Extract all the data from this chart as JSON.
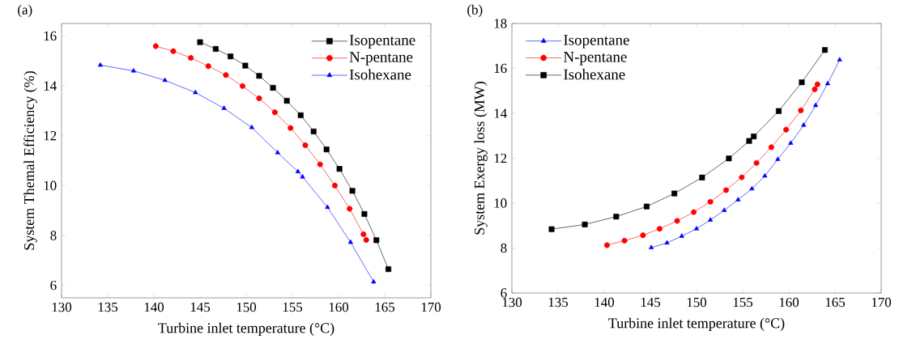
{
  "chart_data": [
    {
      "type": "line",
      "title": "(a)",
      "xlabel": "Turbine inlet temperature (°C)",
      "ylabel": "System Themal Efficiency (%)",
      "xlim": [
        130,
        170
      ],
      "ylim": [
        5.5,
        16.5
      ],
      "xticks": [
        130,
        135,
        140,
        145,
        150,
        155,
        160,
        165,
        170
      ],
      "yticks": [
        6,
        8,
        10,
        12,
        14,
        16
      ],
      "legend": "top right",
      "grid": false,
      "series": [
        {
          "name": "Isopentane",
          "color": "#000000",
          "marker": "square",
          "x": [
            145.0,
            146.7,
            148.3,
            149.9,
            151.4,
            152.9,
            154.4,
            155.9,
            157.3,
            158.7,
            160.1,
            161.5,
            162.8,
            164.1,
            165.4
          ],
          "values": [
            15.75,
            15.48,
            15.18,
            14.81,
            14.4,
            13.92,
            13.4,
            12.82,
            12.17,
            11.45,
            10.67,
            9.79,
            8.86,
            7.81,
            6.65
          ]
        },
        {
          "name": "N-pentane",
          "color": "#ff0000",
          "marker": "circle",
          "x": [
            140.2,
            142.1,
            144.0,
            145.9,
            147.8,
            149.6,
            151.4,
            153.1,
            154.8,
            156.4,
            158.0,
            159.6,
            161.2,
            162.7,
            163.0
          ],
          "values": [
            15.59,
            15.39,
            15.12,
            14.79,
            14.43,
            13.99,
            13.5,
            12.94,
            12.31,
            11.62,
            10.85,
            10.0,
            9.07,
            8.05,
            7.82
          ]
        },
        {
          "name": "Isohexane",
          "color": "#0000ff",
          "marker": "triangle",
          "x": [
            134.2,
            137.8,
            141.2,
            144.5,
            147.6,
            150.6,
            153.4,
            155.6,
            156.1,
            158.8,
            161.3,
            163.8
          ],
          "values": [
            14.83,
            14.6,
            14.22,
            13.73,
            13.1,
            12.33,
            11.32,
            10.56,
            10.35,
            9.13,
            7.73,
            6.14
          ]
        }
      ]
    },
    {
      "type": "line",
      "title": "(b)",
      "xlabel": "Turbine inlet temperature (°C)",
      "ylabel": "System Exergy loss (MW)",
      "xlim": [
        130,
        170
      ],
      "ylim": [
        6,
        18
      ],
      "xticks": [
        130,
        135,
        140,
        145,
        150,
        155,
        160,
        165,
        170
      ],
      "yticks": [
        6,
        8,
        10,
        12,
        14,
        16,
        18
      ],
      "legend": "top left",
      "grid": false,
      "series": [
        {
          "name": "Isopentane",
          "color": "#0000ff",
          "marker": "triangle",
          "x": [
            145.1,
            146.8,
            148.4,
            150.0,
            151.5,
            153.0,
            154.5,
            156.0,
            157.4,
            158.8,
            160.2,
            161.6,
            162.9,
            164.2,
            165.5
          ],
          "values": [
            8.02,
            8.23,
            8.53,
            8.86,
            9.25,
            9.68,
            10.15,
            10.64,
            11.21,
            11.95,
            12.67,
            13.47,
            14.35,
            15.32,
            16.38
          ]
        },
        {
          "name": "N-pentane",
          "color": "#ff0000",
          "marker": "circle",
          "x": [
            140.3,
            142.2,
            144.2,
            146.0,
            147.9,
            149.7,
            151.5,
            153.2,
            154.9,
            156.5,
            158.1,
            159.7,
            161.3,
            162.8,
            163.1
          ],
          "values": [
            8.13,
            8.33,
            8.57,
            8.86,
            9.21,
            9.6,
            10.06,
            10.58,
            11.15,
            11.79,
            12.49,
            13.27,
            14.13,
            15.07,
            15.29
          ]
        },
        {
          "name": "Isohexane",
          "color": "#000000",
          "marker": "square",
          "x": [
            134.3,
            137.9,
            141.3,
            144.6,
            147.6,
            150.6,
            153.5,
            155.7,
            156.2,
            158.9,
            161.4,
            163.9
          ],
          "values": [
            8.84,
            9.05,
            9.4,
            9.85,
            10.43,
            11.14,
            11.99,
            12.77,
            12.97,
            14.1,
            15.38,
            16.82
          ]
        }
      ]
    }
  ]
}
